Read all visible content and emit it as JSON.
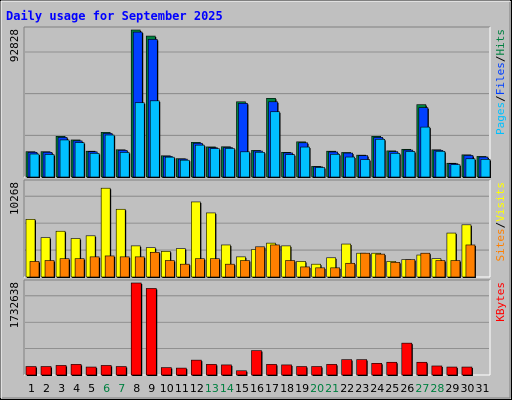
{
  "chart_data": {
    "type": "bar",
    "title": "Daily usage for September 2025",
    "days": [
      "1",
      "2",
      "3",
      "4",
      "5",
      "6",
      "7",
      "8",
      "9",
      "10",
      "11",
      "12",
      "13",
      "14",
      "15",
      "16",
      "17",
      "18",
      "19",
      "20",
      "21",
      "22",
      "23",
      "24",
      "25",
      "26",
      "27",
      "28",
      "29",
      "30",
      "31"
    ],
    "weekend_days": [
      "6",
      "7",
      "13",
      "14",
      "20",
      "21",
      "27",
      "28"
    ],
    "panels": [
      {
        "id": "top",
        "ylabel_max": "92828",
        "ymax": 92828,
        "legend": [
          {
            "text": "Pages",
            "color": "#00c0ff"
          },
          {
            "text": "/",
            "color": "#000000"
          },
          {
            "text": "Files",
            "color": "#0040ff"
          },
          {
            "text": "/",
            "color": "#000000"
          },
          {
            "text": "Hits",
            "color": "#008040"
          }
        ],
        "series": [
          {
            "name": "Hits",
            "color": "#008040",
            "values": [
              16000,
              16000,
              25700,
              23400,
              16300,
              28200,
              17200,
              92828,
              89000,
              13400,
              11600,
              21900,
              19000,
              19100,
              47500,
              16800,
              49700,
              15600,
              22200,
              6700,
              16300,
              15500,
              13800,
              25700,
              16500,
              17500,
              45700,
              17200,
              8700,
              14000,
              13000
            ]
          },
          {
            "name": "Files",
            "color": "#0040ff",
            "values": [
              15600,
              15600,
              25000,
              22800,
              15900,
              27500,
              16800,
              91500,
              86900,
              13000,
              11300,
              21300,
              18500,
              18600,
              46500,
              16400,
              47500,
              15200,
              21600,
              6400,
              15800,
              15100,
              13500,
              25000,
              16000,
              17000,
              43800,
              16800,
              8400,
              13600,
              12600
            ]
          },
          {
            "name": "Pages",
            "color": "#00c0ff",
            "values": [
              14500,
              14200,
              23400,
              21700,
              14900,
              26500,
              15500,
              46900,
              48100,
              12500,
              10600,
              20100,
              17900,
              18000,
              15900,
              15600,
              41200,
              14100,
              18900,
              6000,
              14300,
              12600,
              11000,
              23800,
              14900,
              16100,
              31500,
              16200,
              7800,
              11500,
              11100
            ]
          }
        ]
      },
      {
        "id": "mid",
        "ylabel_max": "10268",
        "ymax": 10268,
        "legend": [
          {
            "text": "Sites",
            "color": "#ff8000"
          },
          {
            "text": "/",
            "color": "#000000"
          },
          {
            "text": "Visits",
            "color": "#ffff00"
          }
        ],
        "series": [
          {
            "name": "Visits",
            "color": "#ffff00",
            "values": [
              6300,
              4300,
              5000,
              4200,
              4500,
              9700,
              7400,
              3400,
              3200,
              2800,
              3100,
              8200,
              7000,
              3500,
              2200,
              3000,
              3700,
              3400,
              1700,
              1400,
              2100,
              3600,
              2600,
              2600,
              1700,
              1900,
              2400,
              2000,
              4800,
              5700,
              0
            ]
          },
          {
            "name": "Sites",
            "color": "#ff8000",
            "values": [
              1700,
              1800,
              2000,
              2000,
              2200,
              2300,
              2200,
              2200,
              2700,
              1800,
              1400,
              2000,
              2000,
              1400,
              1800,
              3300,
              3500,
              1800,
              1100,
              1000,
              1000,
              1500,
              2600,
              2500,
              1600,
              1900,
              2600,
              1800,
              1800,
              3500,
              0
            ]
          }
        ]
      },
      {
        "id": "bot",
        "ylabel_max": "1732638",
        "ymax": 1732638,
        "legend": [
          {
            "text": "KBytes",
            "color": "#ff0000"
          }
        ],
        "series": [
          {
            "name": "KBytes",
            "color": "#ff0000",
            "values": [
              160000,
              160000,
              180000,
              200000,
              150000,
              180000,
              160000,
              1732638,
              1630000,
              140000,
              130000,
              280000,
              200000,
              190000,
              80000,
              460000,
              200000,
              190000,
              160000,
              160000,
              200000,
              290000,
              290000,
              220000,
              240000,
              600000,
              240000,
              170000,
              150000,
              150000,
              0
            ]
          }
        ]
      }
    ]
  }
}
